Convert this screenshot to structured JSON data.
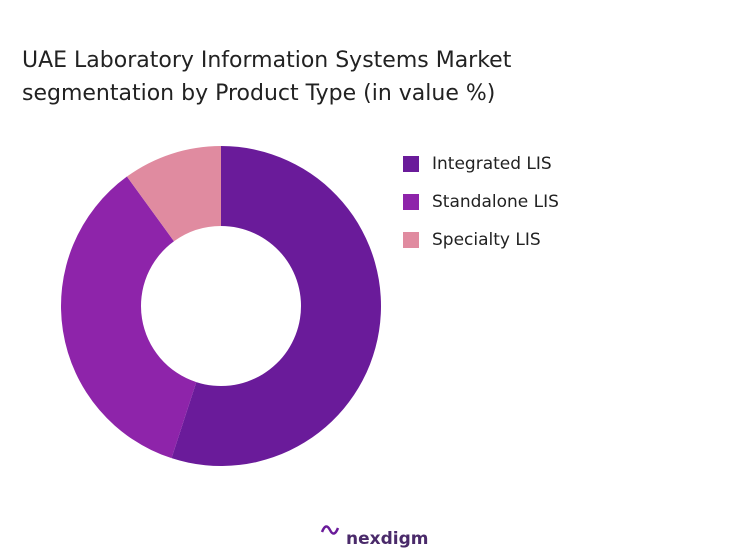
{
  "chart_data": {
    "type": "donut",
    "title": "UAE Laboratory Information Systems Market segmentation by Product Type (in value %)",
    "categories": [
      "Integrated LIS",
      "Standalone LIS",
      "Specialty LIS"
    ],
    "values": [
      55,
      35,
      10
    ],
    "colors": [
      "#6a1b9a",
      "#8e24aa",
      "#e08ba0"
    ]
  },
  "brand": "nexdigm"
}
